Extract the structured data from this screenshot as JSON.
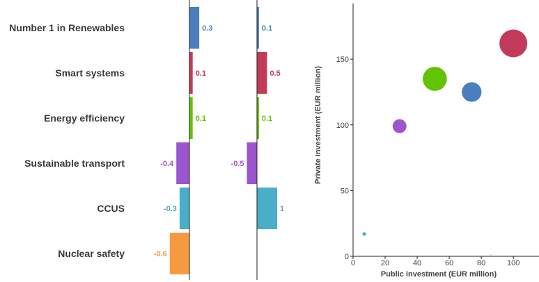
{
  "chart_data": [
    {
      "type": "bar",
      "orientation": "horizontal",
      "categories": [
        "Number 1 in Renewables",
        "Smart systems",
        "Energy efficiency",
        "Sustainable transport",
        "CCUS",
        "Nuclear safety"
      ],
      "values": [
        0.3,
        0.1,
        0.1,
        -0.4,
        -0.3,
        -0.6
      ],
      "value_labels": [
        "0.3",
        "0.1",
        "0.1",
        "-0.4",
        "-0.3",
        "-0.6"
      ],
      "colors": [
        "#4a7ebf",
        "#c23b5a",
        "#62c300",
        "#9b55cf",
        "#4aaec8",
        "#f59a41"
      ],
      "xlim": [
        -0.7,
        0.7
      ]
    },
    {
      "type": "bar",
      "orientation": "horizontal",
      "categories": [
        "Number 1 in Renewables",
        "Smart systems",
        "Energy efficiency",
        "Sustainable transport",
        "CCUS",
        "Nuclear safety"
      ],
      "values": [
        0.1,
        0.5,
        0.1,
        -0.5,
        1,
        0
      ],
      "value_labels": [
        "0.1",
        "0.5",
        "0.1",
        "-0.5",
        "1",
        ""
      ],
      "colors": [
        "#4a7ebf",
        "#c23b5a",
        "#62c300",
        "#9b55cf",
        "#4aaec8",
        "#f59a41"
      ],
      "xlim": [
        -1.2,
        2.2
      ]
    },
    {
      "type": "scatter",
      "xlabel": "Public investment (EUR million)",
      "ylabel": "Private investment (EUR million)",
      "xlim": [
        0,
        116
      ],
      "ylim": [
        0,
        195
      ],
      "xticks": [
        0,
        20,
        40,
        60,
        80,
        100
      ],
      "yticks": [
        0,
        50,
        100,
        150
      ],
      "points": [
        {
          "category": "Number 1 in Renewables",
          "x": 74,
          "y": 125,
          "size": 0.3,
          "color": "#4a7ebf"
        },
        {
          "category": "Smart systems",
          "x": 100,
          "y": 162,
          "size": 0.6,
          "color": "#c23b5a"
        },
        {
          "category": "Energy efficiency",
          "x": 51,
          "y": 135,
          "size": 0.45,
          "color": "#62c300"
        },
        {
          "category": "Sustainable transport",
          "x": 29,
          "y": 99,
          "size": 0.15,
          "color": "#9b55cf"
        },
        {
          "category": "CCUS",
          "x": 7,
          "y": 17,
          "size": 0.01,
          "color": "#4aaec8"
        },
        {
          "category": "Nuclear safety",
          "x": 86,
          "y": 1,
          "size": 0.0,
          "color": "#f59a41"
        }
      ]
    }
  ]
}
